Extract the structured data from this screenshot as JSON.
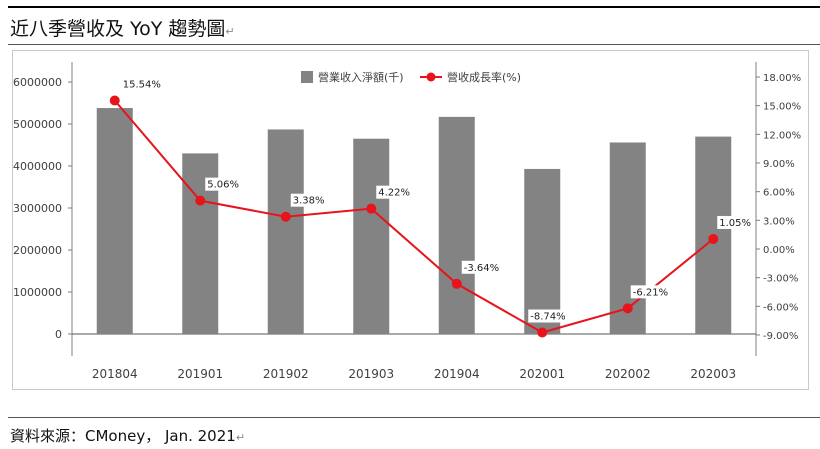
{
  "title": "近八季營收及 YoY 趨勢圖",
  "source": "資料來源：CMoney， Jan. 2021",
  "paragraph_mark": "↵",
  "colors": {
    "bar": "#838383",
    "line": "#e8141b",
    "axis": "#7f7f7f",
    "text": "#404040"
  },
  "chart_data": {
    "type": "bar",
    "categories": [
      "201804",
      "201901",
      "201902",
      "201903",
      "201904",
      "202001",
      "202002",
      "202003"
    ],
    "series": [
      {
        "name": "營業收入淨額(千)",
        "type": "bar",
        "axis": "left",
        "values": [
          5380000,
          4300000,
          4870000,
          4650000,
          5170000,
          3930000,
          4560000,
          4700000
        ]
      },
      {
        "name": "營收成長率(%)",
        "type": "line",
        "axis": "right",
        "values": [
          15.54,
          5.06,
          3.38,
          4.22,
          -3.64,
          -8.74,
          -6.21,
          1.05
        ],
        "labels": [
          "15.54%",
          "5.06%",
          "3.38%",
          "4.22%",
          "-3.64%",
          "-8.74%",
          "-6.21%",
          "1.05%"
        ]
      }
    ],
    "y_left": {
      "ticks": [
        0,
        1000000,
        2000000,
        3000000,
        4000000,
        5000000,
        6000000
      ],
      "tick_labels": [
        "0",
        "1000000",
        "2000000",
        "3000000",
        "4000000",
        "5000000",
        "6000000"
      ]
    },
    "y_right": {
      "ticks": [
        -9,
        -6,
        -3,
        0,
        3,
        6,
        9,
        12,
        15,
        18
      ],
      "tick_labels": [
        "-9.00%",
        "-6.00%",
        "-3.00%",
        "0.00%",
        "3.00%",
        "6.00%",
        "9.00%",
        "12.00%",
        "15.00%",
        "18.00%"
      ]
    },
    "legend_position": "top-center",
    "grid": false
  }
}
